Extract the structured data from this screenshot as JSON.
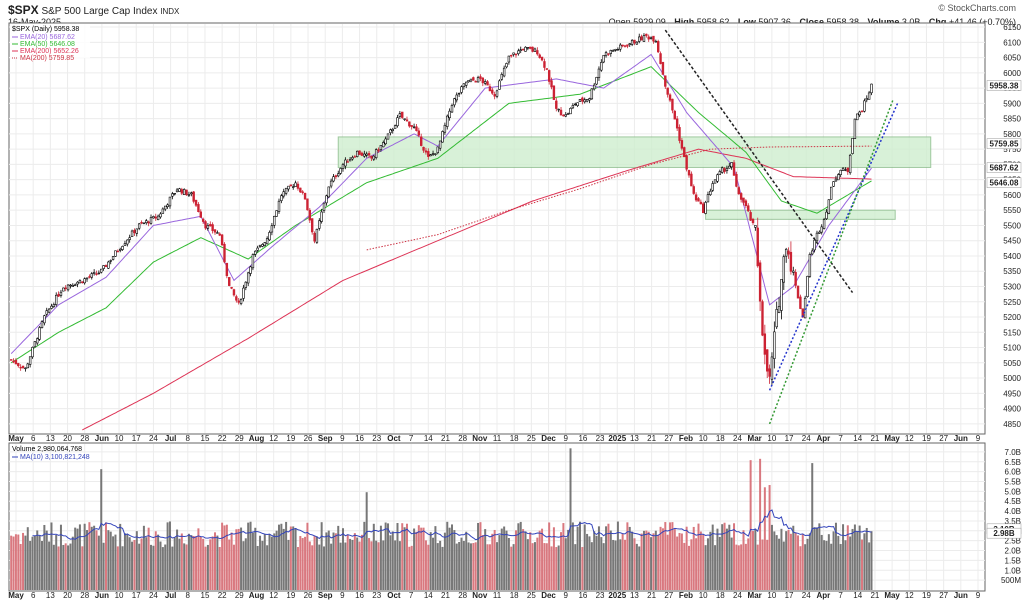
{
  "header": {
    "symbol": "$SPX",
    "name": "S&P 500 Large Cap Index",
    "exchange": "INDX",
    "date": "16-May-2025",
    "watermark": "© StockCharts.com",
    "open_label": "Open",
    "open": "5929.09",
    "high_label": "High",
    "high": "5958.62",
    "low_label": "Low",
    "low": "5907.36",
    "close_label": "Close",
    "close": "5958.38",
    "volume_label": "Volume",
    "volume": "3.0B",
    "chg_label": "Chg",
    "chg": "+41.46 (+0.70%)"
  },
  "legend": {
    "price": "$SPX (Daily) 5958.38",
    "ema20": "EMA(20) 5687.62",
    "ema50": "EMA(50) 5646.08",
    "ema200": "EMA(200) 5652.26",
    "ma200": "MA(200) 5759.85",
    "volume": "Volume 2,980,064,768",
    "volma": "MA(10) 3,100,821,248"
  },
  "colors": {
    "up": "#000000",
    "down": "#cc2233",
    "ema20": "#9966dd",
    "ema50": "#33bb33",
    "ema200": "#dd3355",
    "ma200": "#cc3344",
    "zone": "#cfeecf",
    "zone_border": "#88bb88",
    "trend_black": "#222222",
    "trend_blue": "#2233cc",
    "trend_green": "#339933",
    "vol_up": "#777777",
    "vol_down": "#d9787f",
    "volma": "#3344bb"
  },
  "price_ticks": [
    "4850",
    "4900",
    "4950",
    "5000",
    "5050",
    "5100",
    "5150",
    "5200",
    "5250",
    "5300",
    "5350",
    "5400",
    "5450",
    "5500",
    "5550",
    "5600",
    "5650",
    "5700",
    "5750",
    "5800",
    "5850",
    "5900",
    "5950",
    "6000",
    "6050",
    "6100",
    "6150"
  ],
  "price_labels": {
    "close": "5958.38",
    "ma200": "5759.85",
    "ema20": "5687.62",
    "ema50": "5646.08"
  },
  "volume_ticks": [
    "500M",
    "1.0B",
    "1.5B",
    "2.0B",
    "2.5B",
    "3.0B",
    "3.5B",
    "4.0B",
    "4.5B",
    "5.0B",
    "5.5B",
    "6.0B",
    "6.5B",
    "7.0B"
  ],
  "volume_labels": {
    "vol": "2.98B",
    "volma": "3.10B"
  },
  "x_ticks": [
    {
      "t": "May",
      "b": true
    },
    {
      "t": "6"
    },
    {
      "t": "13"
    },
    {
      "t": "20"
    },
    {
      "t": "28"
    },
    {
      "t": "Jun",
      "b": true
    },
    {
      "t": "10"
    },
    {
      "t": "17"
    },
    {
      "t": "24"
    },
    {
      "t": "Jul",
      "b": true
    },
    {
      "t": "8"
    },
    {
      "t": "15"
    },
    {
      "t": "22"
    },
    {
      "t": "29"
    },
    {
      "t": "Aug",
      "b": true
    },
    {
      "t": "12"
    },
    {
      "t": "19"
    },
    {
      "t": "26"
    },
    {
      "t": "Sep",
      "b": true
    },
    {
      "t": "9"
    },
    {
      "t": "16"
    },
    {
      "t": "23"
    },
    {
      "t": "Oct",
      "b": true
    },
    {
      "t": "7"
    },
    {
      "t": "14"
    },
    {
      "t": "21"
    },
    {
      "t": "28"
    },
    {
      "t": "Nov",
      "b": true
    },
    {
      "t": "11"
    },
    {
      "t": "18"
    },
    {
      "t": "25"
    },
    {
      "t": "Dec",
      "b": true
    },
    {
      "t": "9"
    },
    {
      "t": "16"
    },
    {
      "t": "23"
    },
    {
      "t": "2025",
      "b": true
    },
    {
      "t": "13"
    },
    {
      "t": "21"
    },
    {
      "t": "27"
    },
    {
      "t": "Feb",
      "b": true
    },
    {
      "t": "10"
    },
    {
      "t": "18"
    },
    {
      "t": "24"
    },
    {
      "t": "Mar",
      "b": true
    },
    {
      "t": "10"
    },
    {
      "t": "17"
    },
    {
      "t": "24"
    },
    {
      "t": "Apr",
      "b": true
    },
    {
      "t": "7"
    },
    {
      "t": "14"
    },
    {
      "t": "21"
    },
    {
      "t": "May",
      "b": true
    },
    {
      "t": "12"
    },
    {
      "t": "19"
    },
    {
      "t": "27"
    },
    {
      "t": "Jun",
      "b": true
    },
    {
      "t": "9"
    }
  ],
  "chart_data": {
    "type": "candlestick",
    "title": "$SPX S&P 500 Large Cap Index INDX",
    "ylim": [
      4820,
      6160
    ],
    "volume_ylim": [
      0,
      7400000000
    ],
    "anchors": [
      [
        0,
        5060
      ],
      [
        6,
        5030
      ],
      [
        14,
        5200
      ],
      [
        22,
        5300
      ],
      [
        30,
        5320
      ],
      [
        38,
        5350
      ],
      [
        46,
        5430
      ],
      [
        54,
        5500
      ],
      [
        62,
        5530
      ],
      [
        70,
        5620
      ],
      [
        76,
        5600
      ],
      [
        82,
        5500
      ],
      [
        88,
        5470
      ],
      [
        92,
        5300
      ],
      [
        96,
        5240
      ],
      [
        102,
        5400
      ],
      [
        108,
        5460
      ],
      [
        114,
        5600
      ],
      [
        120,
        5640
      ],
      [
        124,
        5590
      ],
      [
        128,
        5450
      ],
      [
        134,
        5630
      ],
      [
        140,
        5700
      ],
      [
        146,
        5740
      ],
      [
        152,
        5720
      ],
      [
        158,
        5780
      ],
      [
        164,
        5860
      ],
      [
        170,
        5820
      ],
      [
        176,
        5720
      ],
      [
        180,
        5750
      ],
      [
        186,
        5900
      ],
      [
        192,
        5970
      ],
      [
        198,
        5980
      ],
      [
        204,
        5930
      ],
      [
        210,
        6050
      ],
      [
        216,
        6080
      ],
      [
        222,
        6070
      ],
      [
        226,
        6010
      ],
      [
        230,
        5880
      ],
      [
        234,
        5860
      ],
      [
        238,
        5900
      ],
      [
        244,
        5920
      ],
      [
        250,
        6060
      ],
      [
        256,
        6080
      ],
      [
        262,
        6100
      ],
      [
        268,
        6120
      ],
      [
        272,
        6110
      ],
      [
        276,
        5960
      ],
      [
        280,
        5850
      ],
      [
        284,
        5720
      ],
      [
        288,
        5600
      ],
      [
        292,
        5550
      ],
      [
        296,
        5640
      ],
      [
        300,
        5680
      ],
      [
        304,
        5700
      ],
      [
        306,
        5620
      ],
      [
        310,
        5560
      ],
      [
        314,
        5480
      ],
      [
        318,
        5060
      ],
      [
        320,
        4990
      ],
      [
        323,
        5200
      ],
      [
        327,
        5450
      ],
      [
        331,
        5300
      ],
      [
        334,
        5200
      ],
      [
        337,
        5400
      ],
      [
        340,
        5470
      ],
      [
        343,
        5520
      ],
      [
        347,
        5650
      ],
      [
        350,
        5680
      ],
      [
        353,
        5680
      ],
      [
        356,
        5850
      ],
      [
        359,
        5880
      ],
      [
        363,
        5958
      ]
    ],
    "ema20": [
      [
        0,
        5080
      ],
      [
        20,
        5240
      ],
      [
        40,
        5330
      ],
      [
        60,
        5500
      ],
      [
        80,
        5530
      ],
      [
        94,
        5320
      ],
      [
        110,
        5430
      ],
      [
        130,
        5560
      ],
      [
        150,
        5720
      ],
      [
        170,
        5800
      ],
      [
        180,
        5760
      ],
      [
        200,
        5950
      ],
      [
        230,
        5980
      ],
      [
        250,
        5950
      ],
      [
        270,
        6060
      ],
      [
        285,
        5870
      ],
      [
        305,
        5690
      ],
      [
        320,
        5240
      ],
      [
        330,
        5300
      ],
      [
        345,
        5500
      ],
      [
        363,
        5688
      ]
    ],
    "ema50": [
      [
        0,
        5050
      ],
      [
        20,
        5150
      ],
      [
        40,
        5230
      ],
      [
        60,
        5380
      ],
      [
        80,
        5460
      ],
      [
        100,
        5390
      ],
      [
        120,
        5500
      ],
      [
        150,
        5640
      ],
      [
        180,
        5720
      ],
      [
        210,
        5900
      ],
      [
        240,
        5930
      ],
      [
        270,
        6020
      ],
      [
        290,
        5870
      ],
      [
        310,
        5740
      ],
      [
        325,
        5580
      ],
      [
        340,
        5540
      ],
      [
        363,
        5646
      ]
    ],
    "ema200": [
      [
        30,
        4830
      ],
      [
        60,
        4950
      ],
      [
        100,
        5130
      ],
      [
        140,
        5320
      ],
      [
        180,
        5450
      ],
      [
        220,
        5580
      ],
      [
        260,
        5680
      ],
      [
        290,
        5750
      ],
      [
        310,
        5720
      ],
      [
        330,
        5660
      ],
      [
        363,
        5652
      ]
    ],
    "ma200": [
      [
        150,
        5420
      ],
      [
        180,
        5470
      ],
      [
        210,
        5550
      ],
      [
        240,
        5620
      ],
      [
        270,
        5700
      ],
      [
        295,
        5750
      ],
      [
        320,
        5757
      ],
      [
        363,
        5760
      ]
    ],
    "volume": {
      "mean": 2900000000,
      "ma10_last": 3100821248,
      "last": 2980064768
    },
    "zones": [
      {
        "x0": 138,
        "x1": 388,
        "y0": 5690,
        "y1": 5790
      },
      {
        "x0": 293,
        "x1": 373,
        "y0": 5520,
        "y1": 5550
      }
    ],
    "trendlines": [
      {
        "style": "solid",
        "x0": 276,
        "y0": 6140,
        "x1": 355,
        "y1": 5280
      },
      {
        "style": "blue",
        "x0": 320,
        "y0": 4960,
        "x1": 374,
        "y1": 5900
      },
      {
        "style": "green",
        "x0": 320,
        "y0": 4850,
        "x1": 372,
        "y1": 5910
      }
    ],
    "x_range_bars": 390
  }
}
